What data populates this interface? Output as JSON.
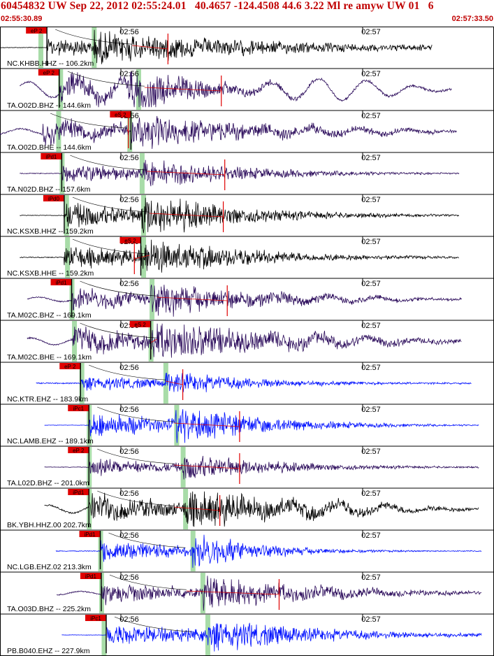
{
  "header": {
    "title": "60454832 UW Sep 22, 2012 02:55:24.01   40.4657 -124.4508 44.6 3.22 Ml re amyw UW 01   6",
    "start_time": "02:55:30.89",
    "end_time": "02:57:33.50"
  },
  "colors": {
    "header": "#c00000",
    "phase_pick": "#e00000",
    "trace_purple": "#2a0a5a",
    "trace_black": "#000000",
    "trace_blue": "#0010ff",
    "model_band": "#a8dca8",
    "theoretical_curve": "#000000"
  },
  "time_ticks": [
    "02:56",
    "02:57"
  ],
  "traces": [
    {
      "label": "NC.KHBB.HHZ -- 106.2km",
      "pick": "eP 2",
      "color": "black",
      "amp": 12,
      "noise": 0.4,
      "decay": 0.9,
      "onset": 0.095,
      "s_arrival": 0.19,
      "band1": 0.082,
      "band2": 0.19,
      "end": 0.875,
      "redmark": 0.34,
      "low_freq": 0.0
    },
    {
      "label": "TA.O02D.BHZ -- 144.6km",
      "pick": "eP 2",
      "color": "purple",
      "amp": 22,
      "noise": 1.2,
      "decay": 0.35,
      "onset": 0.12,
      "s_arrival": 0.26,
      "band1": 0.122,
      "band2": 0.28,
      "end": 0.915,
      "redmark": 0.448,
      "low_freq": 14.0
    },
    {
      "label": "TA.O02D.BHE -- 144.6km",
      "pick": "eS 2",
      "color": "purple",
      "amp": 14,
      "noise": 1.0,
      "decay": 0.7,
      "onset": 0.085,
      "s_arrival": 0.265,
      "band1": 0.118,
      "band2": 0.262,
      "end": 0.925,
      "redmark": 0.26,
      "low_freq": 5.0
    },
    {
      "label": "TA.N02D.BHZ -- 157.6km",
      "pick": "iPd1",
      "color": "purple",
      "amp": 12,
      "noise": 0.5,
      "decay": 0.55,
      "onset": 0.125,
      "s_arrival": 0.285,
      "band1": 0.125,
      "band2": 0.287,
      "end": 0.93,
      "redmark": 0.455,
      "low_freq": 0.0
    },
    {
      "label": "NC.KSXB.HHZ -- 159.2km",
      "pick": "iPd0",
      "color": "black",
      "amp": 18,
      "noise": 0.4,
      "decay": 0.5,
      "onset": 0.13,
      "s_arrival": 0.285,
      "band1": 0.134,
      "band2": 0.29,
      "end": 0.93,
      "redmark": 0.452,
      "low_freq": 0.0
    },
    {
      "label": "NC.KSXB.HHE -- 159.2km",
      "pick": "eS 2",
      "color": "black",
      "amp": 16,
      "noise": 0.6,
      "decay": 0.55,
      "onset": 0.13,
      "s_arrival": 0.285,
      "band1": 0.136,
      "band2": 0.29,
      "end": 0.93,
      "redmark": 0.272,
      "low_freq": 0.0
    },
    {
      "label": "TA.M02C.BHZ -- 169.1km",
      "pick": "iPd1",
      "color": "purple",
      "amp": 14,
      "noise": 0.8,
      "decay": 0.6,
      "onset": 0.145,
      "s_arrival": 0.305,
      "band1": 0.145,
      "band2": 0.307,
      "end": 0.935,
      "redmark": 0.46,
      "low_freq": 4.0
    },
    {
      "label": "TA.M02C.BHE -- 169.1km",
      "pick": "eS 2",
      "color": "purple",
      "amp": 16,
      "noise": 1.0,
      "decay": 0.7,
      "onset": 0.145,
      "s_arrival": 0.305,
      "band1": 0.15,
      "band2": 0.305,
      "end": 0.935,
      "redmark": 0.305,
      "low_freq": 6.0
    },
    {
      "label": "NC.KTR.EHZ -- 183.9km",
      "pick": "eP 2",
      "color": "blue",
      "amp": 10,
      "noise": 0.8,
      "decay": 0.5,
      "onset": 0.163,
      "s_arrival": 0.335,
      "band1": 0.165,
      "band2": 0.335,
      "end": 0.955,
      "redmark": 0.37,
      "low_freq": 0.0
    },
    {
      "label": "NC.LAMB.EHZ -- 189.1km",
      "pick": "iPc1",
      "color": "blue",
      "amp": 18,
      "noise": 0.3,
      "decay": 0.45,
      "onset": 0.18,
      "s_arrival": 0.355,
      "band1": 0.18,
      "band2": 0.357,
      "end": 0.97,
      "redmark": 0.485,
      "low_freq": 0.0
    },
    {
      "label": "TA.L02D.BHZ -- 201.0km",
      "pick": "eP 2",
      "color": "purple",
      "amp": 12,
      "noise": 0.4,
      "decay": 0.5,
      "onset": 0.18,
      "s_arrival": 0.37,
      "band1": 0.18,
      "band2": 0.37,
      "end": 0.97,
      "redmark": 0.485,
      "low_freq": 0.0
    },
    {
      "label": "BK.YBH.HHZ.00 202.7km",
      "pick": "iPd1",
      "color": "black",
      "amp": 18,
      "noise": 1.0,
      "decay": 0.6,
      "onset": 0.18,
      "s_arrival": 0.375,
      "band1": 0.18,
      "band2": 0.375,
      "end": 0.97,
      "redmark": 0.445,
      "low_freq": 7.0
    },
    {
      "label": "NC.LGB.EHZ.02 213.3km",
      "pick": "iPd1",
      "color": "blue",
      "amp": 18,
      "noise": 0.5,
      "decay": 0.35,
      "onset": 0.203,
      "s_arrival": 0.39,
      "band1": 0.203,
      "band2": 0.39,
      "end": 0.975,
      "redmark": -1,
      "low_freq": 0.0
    },
    {
      "label": "TA.O03D.BHZ -- 225.2km",
      "pick": "iPd1",
      "color": "purple",
      "amp": 14,
      "noise": 0.8,
      "decay": 0.6,
      "onset": 0.205,
      "s_arrival": 0.41,
      "band1": 0.205,
      "band2": 0.41,
      "end": 0.975,
      "redmark": 0.565,
      "low_freq": 3.0
    },
    {
      "label": "PB.B040.EHZ -- 227.9km",
      "pick": "iPc1",
      "color": "blue",
      "amp": 14,
      "noise": 0.3,
      "decay": 0.6,
      "onset": 0.215,
      "s_arrival": 0.42,
      "band1": 0.21,
      "band2": 0.42,
      "end": 0.975,
      "redmark": -1,
      "low_freq": 0.0
    }
  ]
}
